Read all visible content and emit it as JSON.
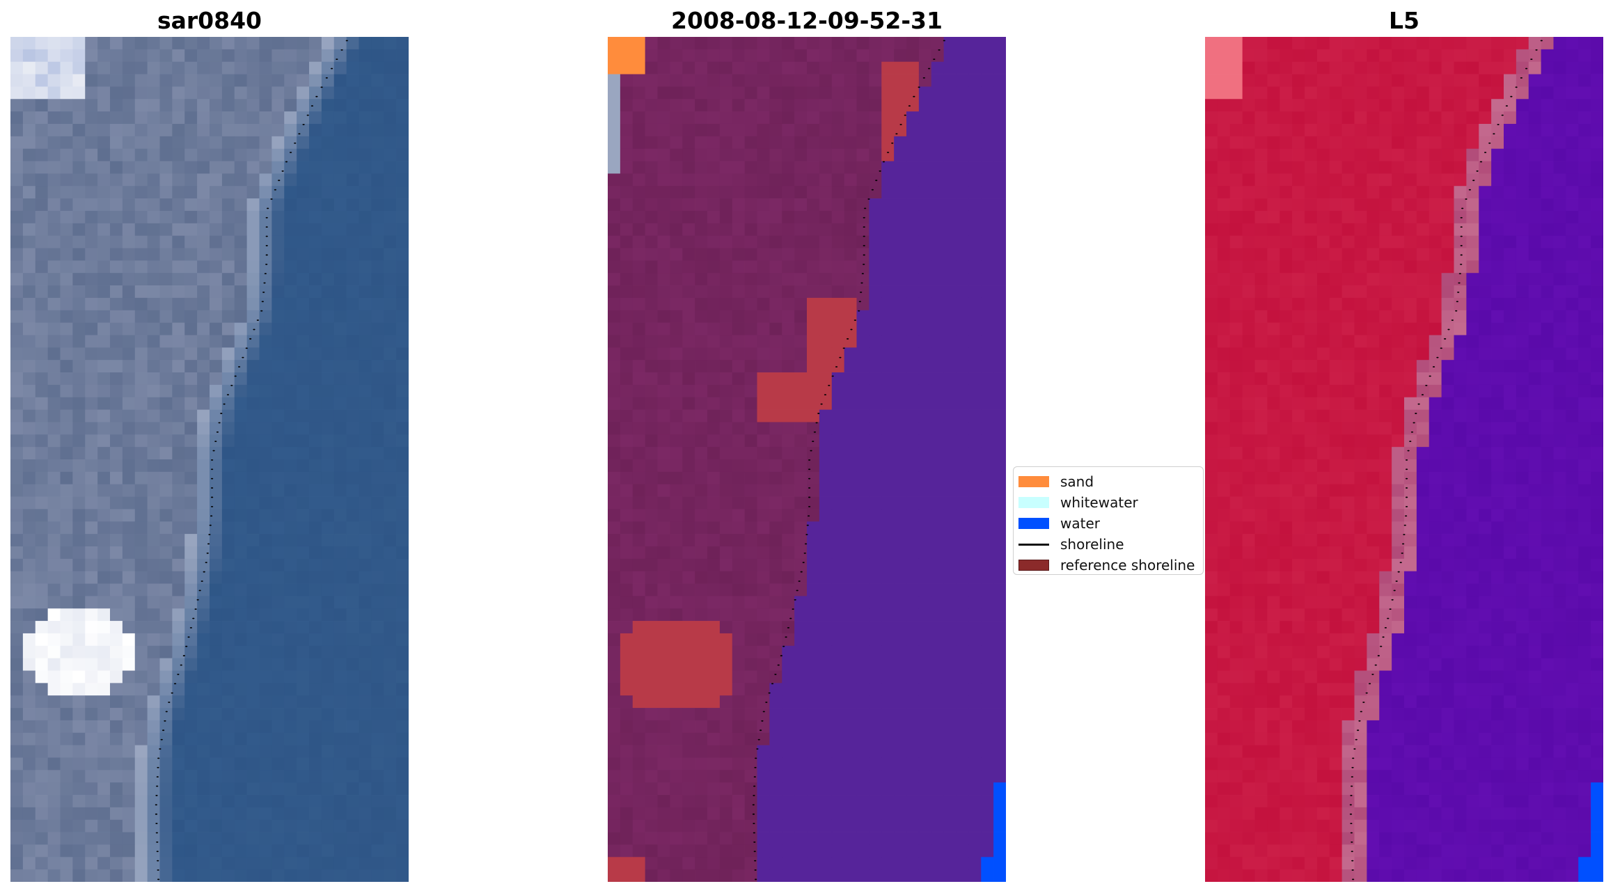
{
  "panels": [
    {
      "title": "sar0840",
      "kind": "rgb"
    },
    {
      "title": "2008-08-12-09-52-31",
      "kind": "classified"
    },
    {
      "title": "L5",
      "kind": "mndwi"
    }
  ],
  "legend": {
    "items": [
      {
        "label": "sand",
        "color": "#ff8c3c",
        "kind": "patch"
      },
      {
        "label": "whitewater",
        "color": "#c8ffff",
        "kind": "patch"
      },
      {
        "label": "water",
        "color": "#0050ff",
        "kind": "patch"
      },
      {
        "label": "shoreline",
        "color": "#000000",
        "kind": "line"
      },
      {
        "label": "reference shoreline",
        "color": "#8b2a2a",
        "kind": "patch"
      }
    ]
  },
  "colors": {
    "rgb_land": "#7c88a6",
    "rgb_land_dark": "#5f6f90",
    "rgb_sea": "#2f5687",
    "rgb_bright": "#e9ecf4",
    "cls_land": "#7b2864",
    "cls_land_dark": "#6f2259",
    "cls_sea": "#56249a",
    "cls_sand": "#ff8c3c",
    "cls_ref": "#b83a48",
    "cls_water": "#0050ff",
    "mndwi_land": "#c4123e",
    "mndwi_sea": "#5a0aaa",
    "mndwi_edge": "#c46a8e",
    "shoreline_dots": "#000000"
  }
}
